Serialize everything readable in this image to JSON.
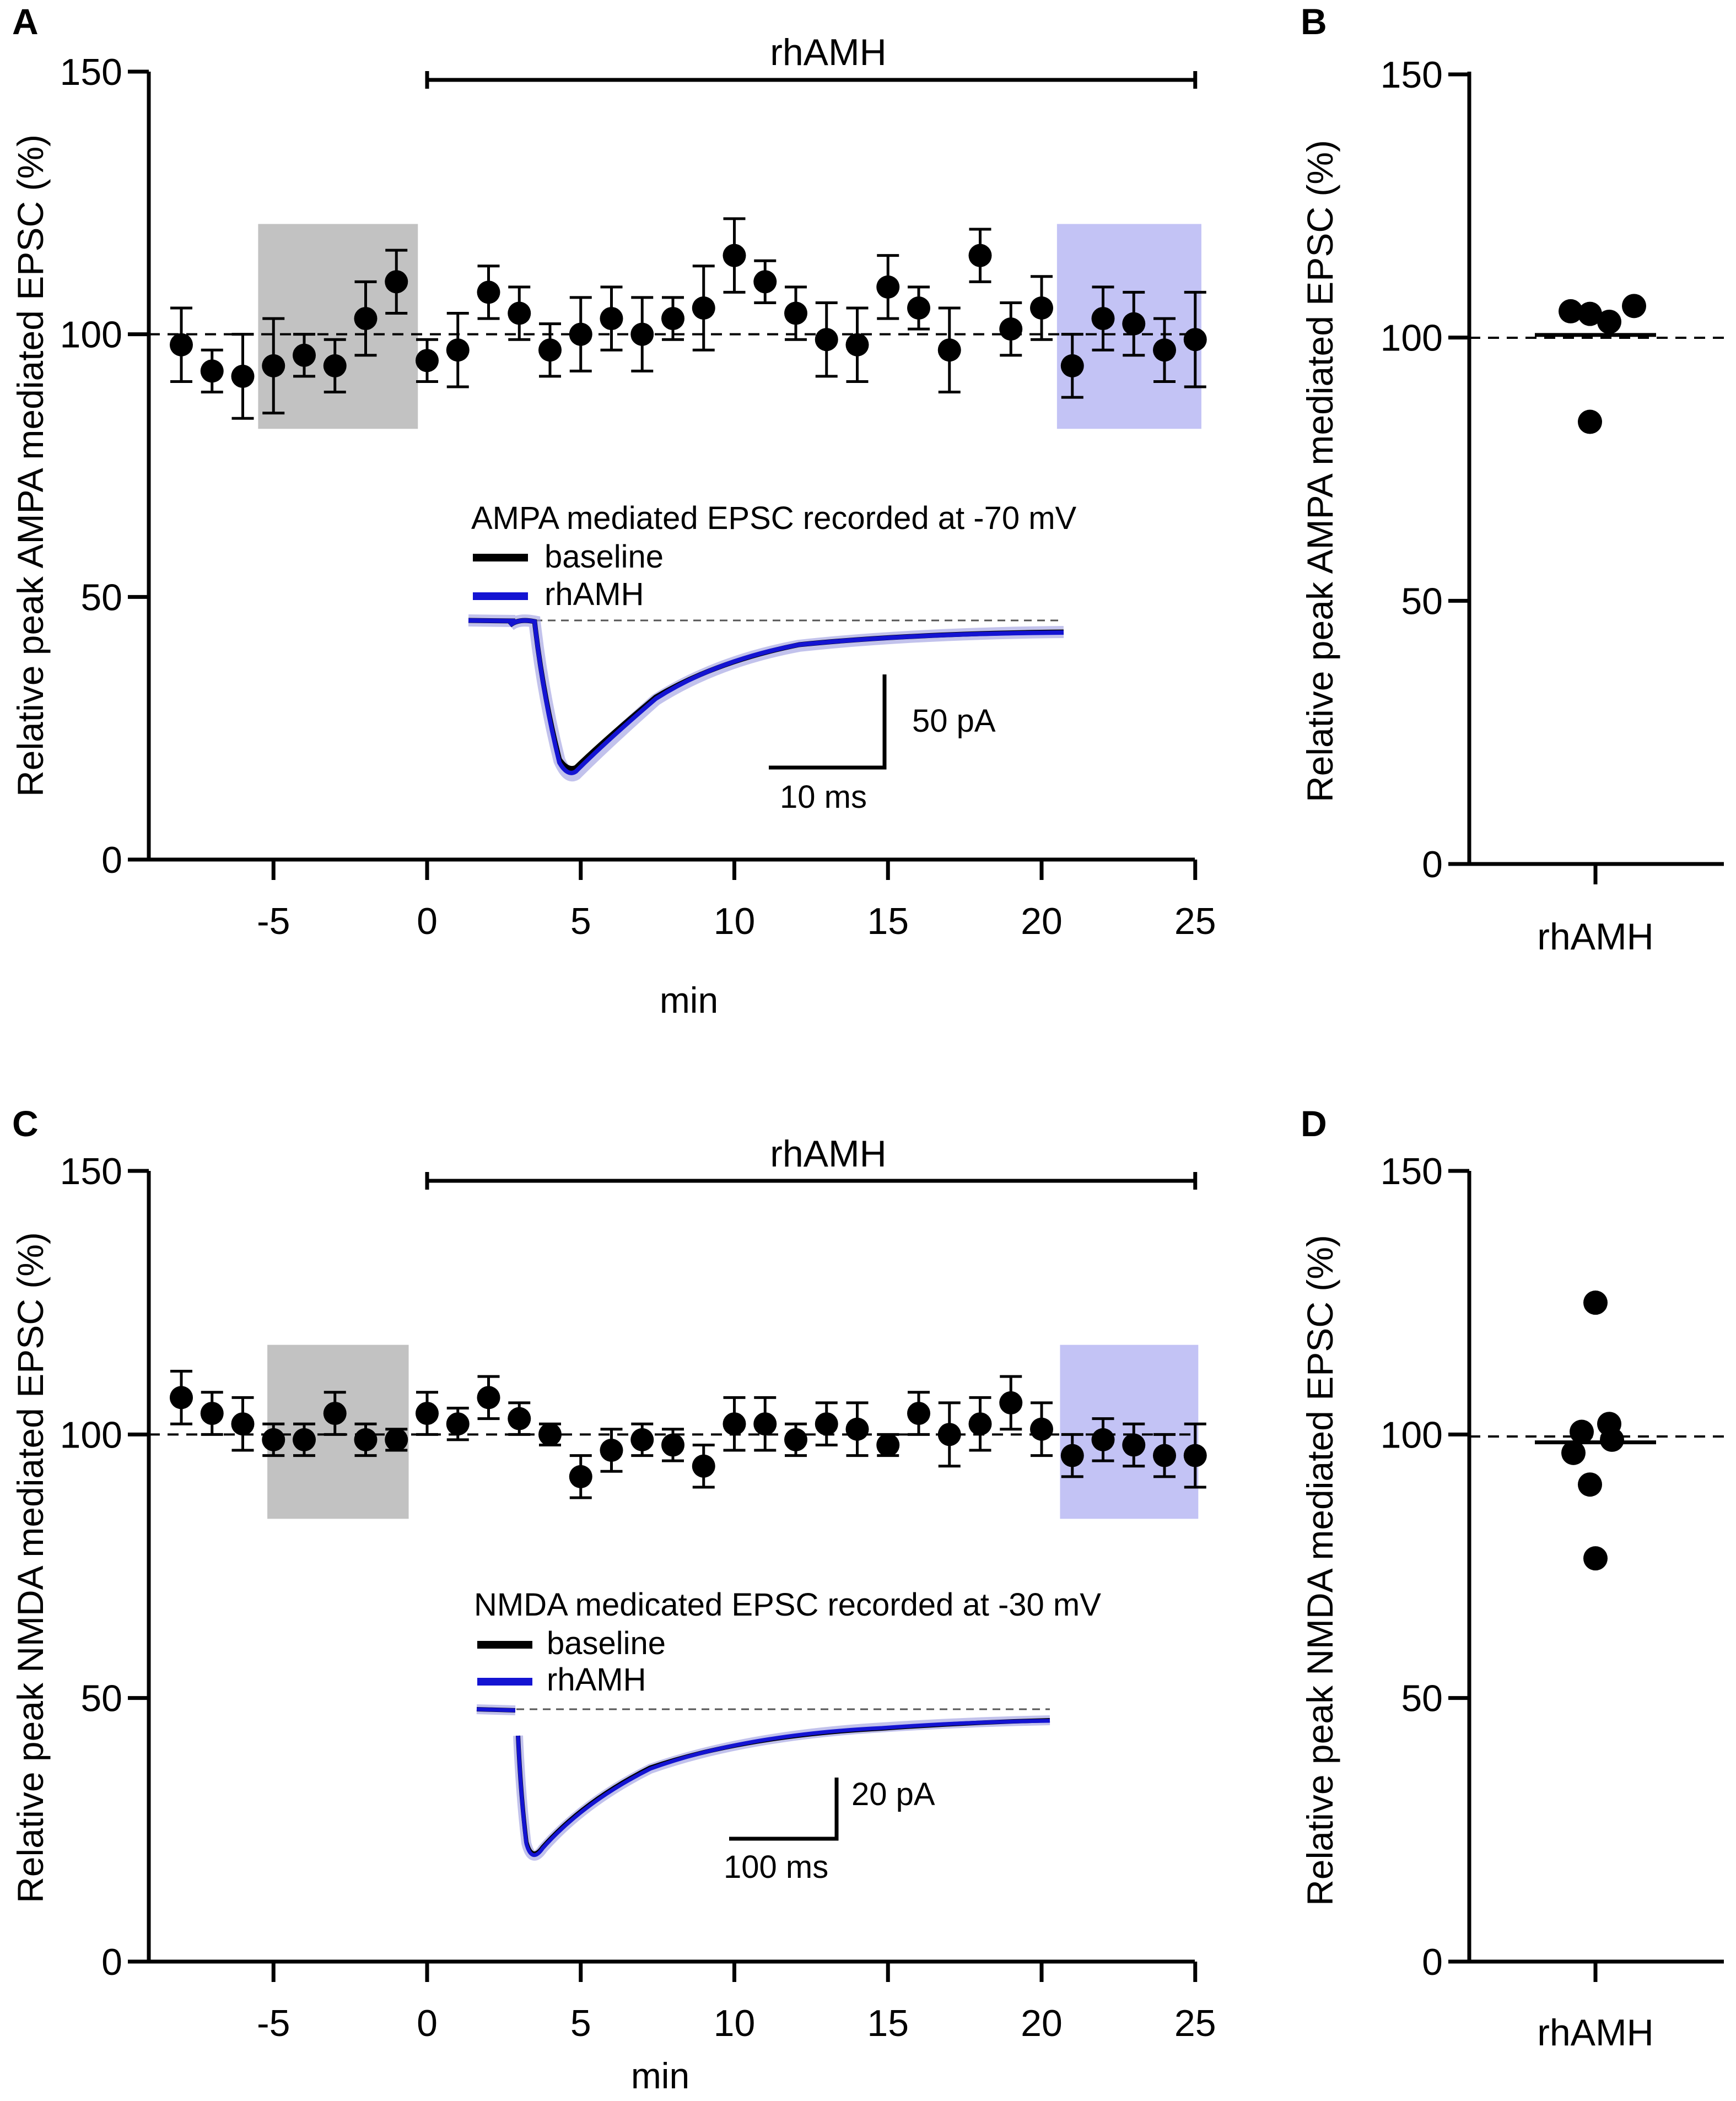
{
  "colors": {
    "baseline_box": "#c2c2c2",
    "drug_box": "#c3c3f5",
    "point": "#000000",
    "trace_baseline": "#000000",
    "trace_rhAMH": "#1414d2",
    "trace_shade": "#9a9ae0"
  },
  "chart_data": [
    {
      "panel": "A",
      "type": "scatter",
      "xlabel": "min",
      "ylabel": "Relative peak AMPA mediated EPSC (%)",
      "xlim": [
        -8,
        25
      ],
      "ylim": [
        0,
        150
      ],
      "xticks": [
        "-5",
        "0",
        "5",
        "10",
        "15",
        "20",
        "25"
      ],
      "yticks": [
        "0",
        "50",
        "100",
        "150"
      ],
      "reference_line": 100,
      "treatment_bar": {
        "label": "rhAMH",
        "from": 0,
        "to": 25
      },
      "baseline_window": [
        -5.5,
        -0.3
      ],
      "drug_window": [
        20.5,
        25.2
      ],
      "window_range": [
        82,
        121
      ],
      "series": [
        {
          "name": "rhAMH",
          "x": [
            -8,
            -7,
            -6,
            -5,
            -4,
            -3,
            -2,
            -1,
            0,
            1,
            2,
            3,
            4,
            5,
            6,
            7,
            8,
            9,
            10,
            11,
            12,
            13,
            14,
            15,
            16,
            17,
            18,
            19,
            20,
            21,
            22,
            23,
            24,
            25
          ],
          "y": [
            98,
            93,
            92,
            94,
            96,
            94,
            103,
            110,
            95,
            97,
            108,
            104,
            97,
            100,
            103,
            100,
            103,
            105,
            115,
            110,
            104,
            99,
            98,
            109,
            105,
            97,
            115,
            101,
            105,
            94,
            103,
            102,
            97,
            99
          ],
          "err": [
            7,
            4,
            8,
            9,
            4,
            5,
            7,
            6,
            4,
            7,
            5,
            5,
            5,
            7,
            6,
            7,
            4,
            8,
            7,
            4,
            5,
            7,
            7,
            6,
            4,
            8,
            5,
            5,
            6,
            6,
            6,
            6,
            6,
            9
          ]
        }
      ],
      "inset": {
        "title": "AMPA mediated EPSC recorded at -70 mV",
        "legend": [
          "baseline",
          "rhAMH"
        ],
        "scale_y": "50 pA",
        "scale_x": "10 ms"
      }
    },
    {
      "panel": "B",
      "type": "scatter",
      "category": "rhAMH",
      "ylabel": "Relative peak AMPA mediated EPSC (%)",
      "ylim": [
        0,
        150
      ],
      "yticks": [
        "0",
        "50",
        "100",
        "150"
      ],
      "reference_line": 100,
      "values": [
        105,
        104.5,
        103,
        106,
        84
      ],
      "mean": 100.5
    },
    {
      "panel": "C",
      "type": "scatter",
      "xlabel": "min",
      "ylabel": "Relative peak NMDA mediated EPSC (%)",
      "xlim": [
        -8,
        25
      ],
      "ylim": [
        0,
        150
      ],
      "xticks": [
        "-5",
        "0",
        "5",
        "10",
        "15",
        "20",
        "25"
      ],
      "yticks": [
        "0",
        "50",
        "100",
        "150"
      ],
      "reference_line": 100,
      "treatment_bar": {
        "label": "rhAMH",
        "from": 0,
        "to": 25
      },
      "baseline_window": [
        -5.2,
        -0.6
      ],
      "drug_window": [
        20.6,
        25.1
      ],
      "window_range": [
        84,
        117
      ],
      "series": [
        {
          "name": "rhAMH",
          "x": [
            -8,
            -7,
            -6,
            -5,
            -4,
            -3,
            -2,
            -1,
            0,
            1,
            2,
            3,
            4,
            5,
            6,
            7,
            8,
            9,
            10,
            11,
            12,
            13,
            14,
            15,
            16,
            17,
            18,
            19,
            20,
            21,
            22,
            23,
            24,
            25
          ],
          "y": [
            107,
            104,
            102,
            99,
            99,
            104,
            99,
            99,
            104,
            102,
            107,
            103,
            100,
            92,
            97,
            99,
            98,
            94,
            102,
            102,
            99,
            102,
            101,
            98,
            104,
            100,
            102,
            106,
            101,
            96,
            99,
            98,
            96,
            96
          ],
          "err": [
            5,
            4,
            5,
            3,
            3,
            4,
            3,
            2,
            4,
            3,
            4,
            3,
            2,
            4,
            4,
            3,
            3,
            4,
            5,
            5,
            3,
            4,
            5,
            2,
            4,
            6,
            5,
            5,
            5,
            4,
            4,
            4,
            4,
            6
          ]
        }
      ],
      "inset": {
        "title": "NMDA medicated EPSC recorded at -30 mV",
        "legend": [
          "baseline",
          "rhAMH"
        ],
        "scale_y": "20 pA",
        "scale_x": "100 ms"
      }
    },
    {
      "panel": "D",
      "type": "scatter",
      "category": "rhAMH",
      "ylabel": "Relative peak NMDA mediated EPSC (%)",
      "ylim": [
        0,
        150
      ],
      "yticks": [
        "0",
        "50",
        "100",
        "150"
      ],
      "reference_line": 100,
      "values": [
        125,
        100.5,
        102,
        96.5,
        99,
        90.5,
        76.5
      ],
      "mean": 98.5
    }
  ]
}
